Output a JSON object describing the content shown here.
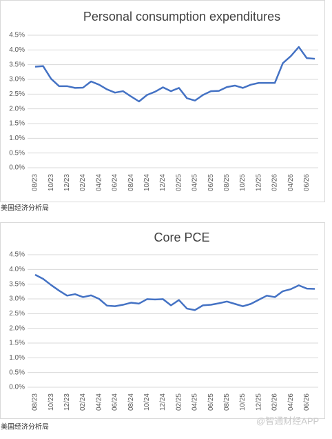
{
  "chart_data": [
    {
      "type": "line",
      "title": "Personal consumption expenditures",
      "categories": [
        "08/23",
        null,
        "10/23",
        null,
        "12/23",
        null,
        "02/24",
        null,
        "04/24",
        null,
        "06/24",
        null,
        "08/24",
        null,
        "10/24",
        null,
        "12/24",
        null,
        "02/25",
        null,
        "04/25",
        null,
        "06/25",
        null,
        "08/25",
        null,
        "10/25",
        null,
        "12/25",
        null,
        "02/26",
        null,
        "04/26",
        null,
        "06/26",
        null
      ],
      "values": [
        3.43,
        3.45,
        3.02,
        2.77,
        2.77,
        2.71,
        2.72,
        2.93,
        2.82,
        2.66,
        2.55,
        2.6,
        2.42,
        2.25,
        2.47,
        2.58,
        2.73,
        2.6,
        2.71,
        2.36,
        2.28,
        2.47,
        2.6,
        2.61,
        2.74,
        2.79,
        2.71,
        2.82,
        2.88,
        2.88,
        2.88,
        3.55,
        3.79,
        4.1,
        3.72,
        3.7
      ],
      "color": "#4472c4",
      "ylim": [
        0,
        4.5
      ],
      "yticks": [
        {
          "value": 0,
          "label": "0.0%"
        },
        {
          "value": 0.5,
          "label": "0.5%"
        },
        {
          "value": 1,
          "label": "1.0%"
        },
        {
          "value": 1.5,
          "label": "1.5%"
        },
        {
          "value": 2,
          "label": "2.0%"
        },
        {
          "value": 2.5,
          "label": "2.5%"
        },
        {
          "value": 3,
          "label": "3.0%"
        },
        {
          "value": 3.5,
          "label": "3.5%"
        },
        {
          "value": 4,
          "label": "4.0%"
        },
        {
          "value": 4.5,
          "label": "4.5%"
        }
      ],
      "grid": true,
      "source": "美国经济分析局"
    },
    {
      "type": "line",
      "title": "Core PCE",
      "categories": [
        "08/23",
        null,
        "10/23",
        null,
        "12/23",
        null,
        "02/24",
        null,
        "04/24",
        null,
        "06/24",
        null,
        "08/24",
        null,
        "10/24",
        null,
        "12/24",
        null,
        "02/25",
        null,
        "04/25",
        null,
        "06/25",
        null,
        "08/25",
        null,
        "10/25",
        null,
        "12/25",
        null,
        "02/26",
        null,
        "04/26",
        null,
        "06/26",
        null
      ],
      "values": [
        3.82,
        3.68,
        3.47,
        3.28,
        3.11,
        3.16,
        3.06,
        3.12,
        3.0,
        2.77,
        2.75,
        2.8,
        2.87,
        2.84,
        2.99,
        2.98,
        2.99,
        2.78,
        2.96,
        2.67,
        2.62,
        2.78,
        2.8,
        2.85,
        2.91,
        2.83,
        2.75,
        2.83,
        2.97,
        3.11,
        3.06,
        3.26,
        3.33,
        3.46,
        3.35,
        3.34
      ],
      "color": "#4472c4",
      "ylim": [
        0,
        4.5
      ],
      "yticks": [
        {
          "value": 0,
          "label": "0.0%"
        },
        {
          "value": 0.5,
          "label": "0.5%"
        },
        {
          "value": 1,
          "label": "1.0%"
        },
        {
          "value": 1.5,
          "label": "1.5%"
        },
        {
          "value": 2,
          "label": "2.0%"
        },
        {
          "value": 2.5,
          "label": "2.5%"
        },
        {
          "value": 3,
          "label": "3.0%"
        },
        {
          "value": 3.5,
          "label": "3.5%"
        },
        {
          "value": 4,
          "label": "4.0%"
        },
        {
          "value": 4.5,
          "label": "4.5%"
        }
      ],
      "grid": true,
      "source": "美国经济分析局"
    }
  ],
  "watermark": "@智通财经APP"
}
